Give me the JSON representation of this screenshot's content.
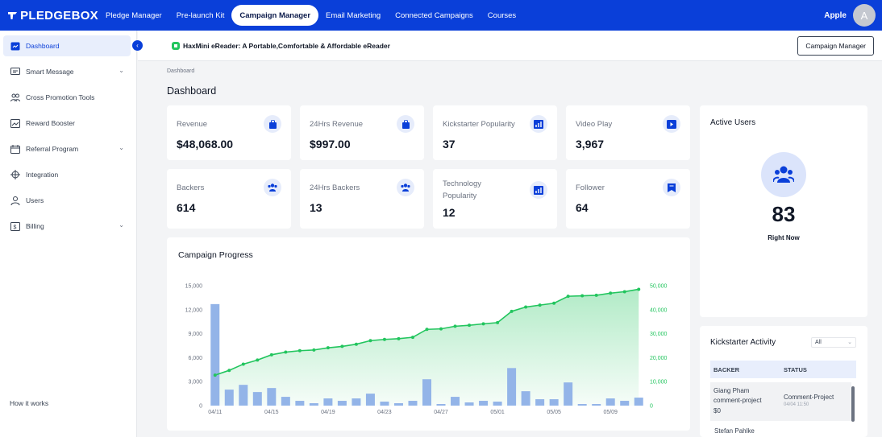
{
  "nav": {
    "brand": "PLEDGEBOX",
    "items": [
      "Pledge Manager",
      "Pre-launch Kit",
      "Campaign Manager",
      "Email Marketing",
      "Connected Campaigns",
      "Courses"
    ],
    "active_index": 2,
    "user_name": "Apple",
    "avatar_letter": "A"
  },
  "sidebar": {
    "items": [
      {
        "label": "Dashboard",
        "icon": "dashboard-icon",
        "active": true
      },
      {
        "label": "Smart Message",
        "icon": "message-icon",
        "expandable": true
      },
      {
        "label": "Cross Promotion Tools",
        "icon": "users-group-icon"
      },
      {
        "label": "Reward Booster",
        "icon": "trending-icon"
      },
      {
        "label": "Referral Program",
        "icon": "calendar-icon",
        "expandable": true
      },
      {
        "label": "Integration",
        "icon": "integration-icon"
      },
      {
        "label": "Users",
        "icon": "user-icon"
      },
      {
        "label": "Billing",
        "icon": "billing-icon",
        "expandable": true
      }
    ],
    "how_it_works": "How it works"
  },
  "subheader": {
    "project_title": "HaxMini eReader: A Portable,Comfortable & Affordable eReader",
    "campaign_manager_button": "Campaign Manager"
  },
  "breadcrumb": "Dashboard",
  "page_title": "Dashboard",
  "stats": [
    {
      "label": "Revenue",
      "value": "$48,068.00",
      "icon": "shopping-bag-icon"
    },
    {
      "label": "24Hrs Revenue",
      "value": "$997.00",
      "icon": "shopping-bag-icon"
    },
    {
      "label": "Kickstarter Popularity",
      "value": "37",
      "icon": "bar-chart-icon"
    },
    {
      "label": "Video Play",
      "value": "3,967",
      "icon": "video-icon"
    },
    {
      "label": "Backers",
      "value": "614",
      "icon": "users-icon"
    },
    {
      "label": "24Hrs Backers",
      "value": "13",
      "icon": "users-icon"
    },
    {
      "label": "Technology Popularity",
      "value": "12",
      "icon": "bar-chart-icon"
    },
    {
      "label": "Follower",
      "value": "64",
      "icon": "bookmark-icon"
    }
  ],
  "active_users": {
    "title": "Active Users",
    "count": "83",
    "subtitle": "Right Now"
  },
  "kickstarter_activity": {
    "title": "Kickstarter Activity",
    "filter": "All",
    "columns": [
      "BACKER",
      "STATUS"
    ],
    "rows": [
      {
        "backer": "Giang Pham",
        "note": "comment-project",
        "amount": "$0",
        "status": "Comment-Project",
        "time": "04/04 11:50"
      },
      {
        "backer": "Stefan Pahlke"
      }
    ]
  },
  "colors": {
    "primary": "#0a3fd9",
    "bar": "#93b4e8",
    "line": "#22c55e"
  },
  "chart_data": {
    "type": "bar",
    "title": "Campaign Progress",
    "x_ticks": [
      "04/11",
      "04/15",
      "04/19",
      "04/23",
      "04/27",
      "05/01",
      "05/05",
      "05/09"
    ],
    "left_axis": {
      "ticks": [
        "15,000",
        "12,000",
        "9,000",
        "6,000",
        "3,000",
        "0"
      ],
      "ylim": [
        0,
        15000
      ]
    },
    "right_axis": {
      "ticks": [
        "50,000",
        "40,000",
        "30,000",
        "20,000",
        "10,000",
        "0"
      ],
      "ylim": [
        0,
        50000
      ]
    },
    "grid": false,
    "series": [
      {
        "type": "bar",
        "axis": "left",
        "values": [
          12700,
          2000,
          2600,
          1700,
          2200,
          1100,
          600,
          300,
          900,
          600,
          900,
          1500,
          500,
          300,
          600,
          3300,
          200,
          1100,
          400,
          600,
          500,
          4700,
          1800,
          800,
          800,
          2900,
          200,
          200,
          900,
          600,
          1000
        ]
      },
      {
        "type": "area",
        "axis": "right",
        "values": [
          12700,
          14700,
          17300,
          19000,
          21200,
          22300,
          22900,
          23200,
          24100,
          24700,
          25600,
          27100,
          27600,
          27900,
          28500,
          31800,
          32000,
          33100,
          33500,
          34100,
          34600,
          39300,
          41100,
          41900,
          42700,
          45600,
          45800,
          46000,
          46900,
          47500,
          48500
        ]
      }
    ]
  }
}
